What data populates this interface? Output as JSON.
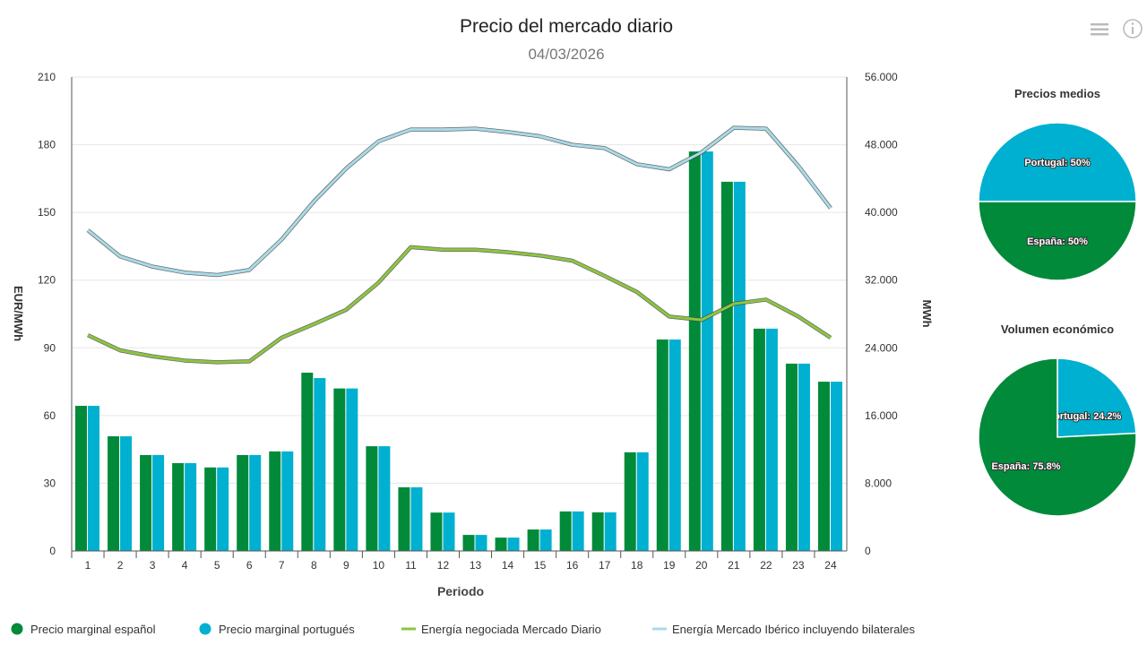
{
  "chart_data": {
    "type": "bar",
    "title": "Precio del mercado diario",
    "subtitle": "04/03/2026",
    "xlabel": "Periodo",
    "ylabel": "EUR/MWh",
    "y2label": "MWh",
    "ylim": [
      0,
      210
    ],
    "y2lim": [
      0,
      56000
    ],
    "yticks": [
      "0",
      "30",
      "60",
      "90",
      "120",
      "150",
      "180",
      "210"
    ],
    "y2ticks": [
      "0",
      "8.000",
      "16.000",
      "24.000",
      "32.000",
      "40.000",
      "48.000",
      "56.000"
    ],
    "grid": true,
    "legend_position": "bottom",
    "categories": [
      "1",
      "2",
      "3",
      "4",
      "5",
      "6",
      "7",
      "8",
      "9",
      "10",
      "11",
      "12",
      "13",
      "14",
      "15",
      "16",
      "17",
      "18",
      "19",
      "20",
      "21",
      "22",
      "23",
      "24"
    ],
    "series": [
      {
        "name": "Precio marginal español",
        "type": "bar",
        "axis": "left",
        "color": "#008a3a",
        "values": [
          64.3,
          50.8,
          42.5,
          38.9,
          37,
          42.5,
          44.1,
          79,
          72,
          46.4,
          28.2,
          17,
          7.1,
          5.9,
          9.5,
          17.5,
          17.1,
          43.7,
          93.7,
          177,
          163.6,
          98.5,
          83,
          75
        ]
      },
      {
        "name": "Precio marginal portugués",
        "type": "bar",
        "axis": "left",
        "color": "#00b0d0",
        "values": [
          64.3,
          50.8,
          42.5,
          38.9,
          37,
          42.5,
          44.1,
          76.6,
          72,
          46.4,
          28.2,
          17,
          7.1,
          5.9,
          9.5,
          17.5,
          17.1,
          43.7,
          93.7,
          177,
          163.6,
          98.5,
          83,
          75
        ]
      },
      {
        "name": "Energía negociada Mercado Diario",
        "type": "line",
        "axis": "right",
        "color": "#8cc63f",
        "values": [
          25500,
          23700,
          23000,
          22500,
          22300,
          22400,
          25200,
          26800,
          28500,
          31700,
          35900,
          35600,
          35600,
          35300,
          34900,
          34300,
          32500,
          30600,
          27700,
          27300,
          29200,
          29700,
          27700,
          25200
        ]
      },
      {
        "name": "Energía Mercado Ibérico incluyendo bilaterales",
        "type": "line",
        "axis": "right",
        "color": "#a8dbe8",
        "values": [
          37900,
          34800,
          33600,
          32900,
          32600,
          33200,
          36800,
          41300,
          45200,
          48400,
          49800,
          49800,
          49900,
          49500,
          49000,
          48000,
          47600,
          45700,
          45100,
          47100,
          50000,
          49900,
          45500,
          40500
        ]
      }
    ],
    "pies": [
      {
        "title": "Precios medios",
        "slices": [
          {
            "label": "Portugal: 50%",
            "value": 50,
            "color": "#00b0d0"
          },
          {
            "label": "España: 50%",
            "value": 50,
            "color": "#008a3a"
          }
        ]
      },
      {
        "title": "Volumen económico",
        "slices": [
          {
            "label": "Portugal: 24.2%",
            "value": 24.2,
            "color": "#00b0d0"
          },
          {
            "label": "España: 75.8%",
            "value": 75.8,
            "color": "#008a3a"
          }
        ]
      }
    ]
  },
  "toolbar": {
    "menu_icon": "hamburger-menu-icon",
    "info_icon": "info-icon"
  }
}
